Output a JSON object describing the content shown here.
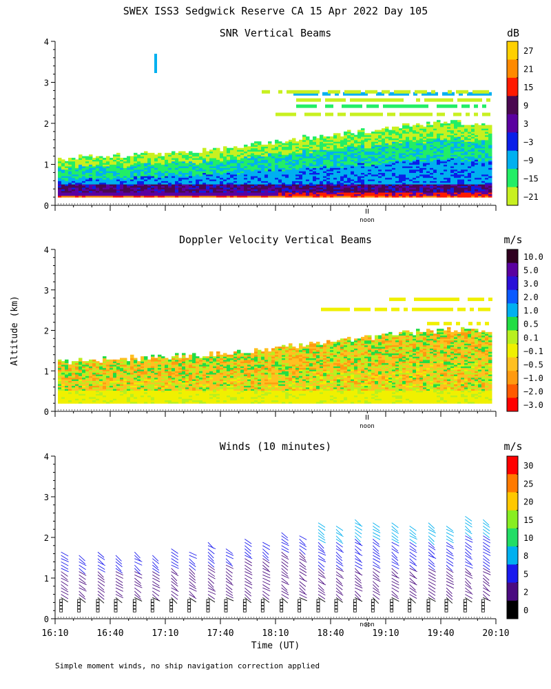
{
  "title": "SWEX ISS3 Sedgwick Reserve CA  15 Apr 2022 Day 105",
  "ylabel": "Altitude (km)",
  "xlabel": "Time (UT)",
  "footnote": "Simple moment winds, no ship navigation correction applied",
  "noon_label": "noon",
  "x_ticks": [
    "16:10",
    "16:40",
    "17:10",
    "17:40",
    "18:10",
    "18:40",
    "19:10",
    "19:40",
    "20:10"
  ],
  "y_ticks": [
    "0",
    "1",
    "2",
    "3",
    "4"
  ],
  "panels": [
    {
      "title": "SNR Vertical Beams",
      "units": "dB",
      "colorbar_labels": [
        "27",
        "21",
        "15",
        "9",
        "3",
        "−3",
        "−9",
        "−15",
        "−21"
      ],
      "colorbar_colors": [
        "#ffd000",
        "#ff8a00",
        "#ff1a00",
        "#4a0850",
        "#5a00a0",
        "#0a1ee8",
        "#00b0f0",
        "#22ee66",
        "#c8f020"
      ]
    },
    {
      "title": "Doppler Velocity Vertical Beams",
      "units": "m/s",
      "colorbar_labels": [
        "10.0",
        "5.0",
        "3.0",
        "2.0",
        "1.0",
        "0.5",
        "0.1",
        "−0.1",
        "−0.5",
        "−1.0",
        "−2.0",
        "−3.0"
      ],
      "colorbar_colors": [
        "#300020",
        "#5a00a0",
        "#2a10d8",
        "#0a5aff",
        "#00b0f0",
        "#22dd44",
        "#b8f020",
        "#f0f000",
        "#ffc020",
        "#ff9a10",
        "#ff5a00",
        "#ff0000"
      ]
    },
    {
      "title": "Winds (10 minutes)",
      "units": "m/s",
      "colorbar_labels": [
        "30",
        "25",
        "20",
        "15",
        "10",
        "8",
        "5",
        "2",
        "0"
      ],
      "colorbar_colors": [
        "#ff0000",
        "#ff7a00",
        "#ffc800",
        "#88ee22",
        "#22dd66",
        "#00b0f0",
        "#1a1aee",
        "#4a0a80",
        "#000000"
      ]
    }
  ],
  "chart_data": [
    {
      "type": "heatmap",
      "title": "SNR Vertical Beams",
      "units": "dB",
      "x_range": [
        "16:10",
        "20:10"
      ],
      "ylim": [
        0,
        4
      ],
      "ylabel": "Altitude (km)",
      "color_levels": [
        -21,
        -15,
        -9,
        -3,
        3,
        9,
        15,
        21,
        27
      ],
      "boundary_layer_top_km": {
        "x": [
          "16:10",
          "17:40",
          "18:40",
          "19:40",
          "20:10"
        ],
        "y": [
          1.1,
          1.35,
          1.7,
          2.0,
          2.0
        ]
      }
    },
    {
      "type": "heatmap",
      "title": "Doppler Velocity Vertical Beams",
      "units": "m/s",
      "x_range": [
        "16:10",
        "20:10"
      ],
      "ylim": [
        0,
        4
      ],
      "ylabel": "Altitude (km)",
      "color_levels": [
        -3.0,
        -2.0,
        -1.0,
        -0.5,
        -0.1,
        0.1,
        0.5,
        1.0,
        2.0,
        3.0,
        5.0,
        10.0
      ],
      "boundary_layer_top_km": {
        "x": [
          "16:10",
          "17:40",
          "18:40",
          "19:40",
          "20:10"
        ],
        "y": [
          1.2,
          1.4,
          1.7,
          2.0,
          2.0
        ]
      }
    },
    {
      "type": "scatter",
      "title": "Winds (10 minutes)",
      "units": "m/s",
      "x": [
        "16:20",
        "16:40",
        "17:00",
        "17:20",
        "17:40",
        "18:00",
        "18:20",
        "18:40",
        "19:00",
        "19:20",
        "19:40",
        "20:00"
      ],
      "ylim": [
        0,
        4
      ],
      "max_barb_altitude_km": [
        1.7,
        1.7,
        1.7,
        1.8,
        1.9,
        2.0,
        2.2,
        2.4,
        2.5,
        2.4,
        2.4,
        2.6
      ],
      "color_levels": [
        0,
        2,
        5,
        8,
        10,
        15,
        20,
        25,
        30
      ]
    }
  ]
}
